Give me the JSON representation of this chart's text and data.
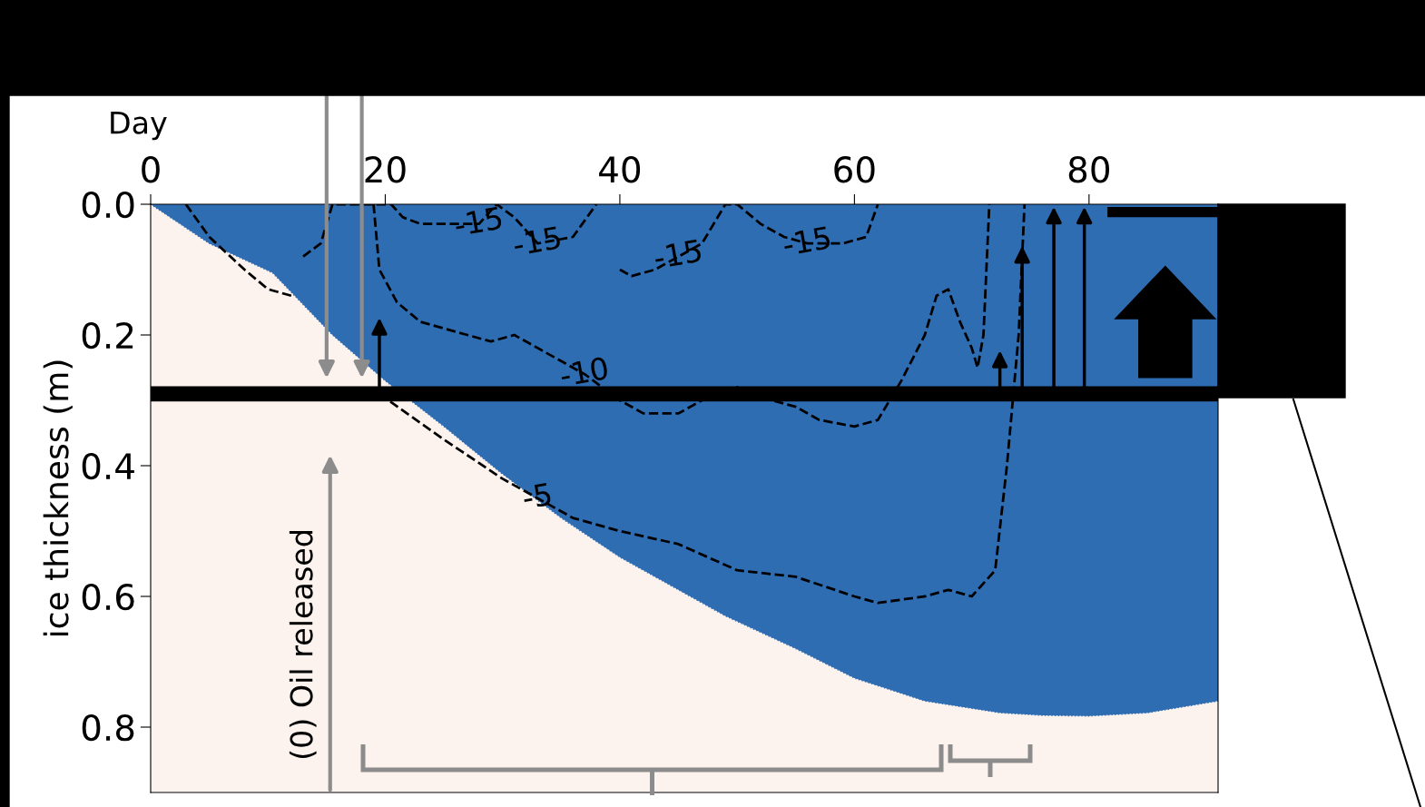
{
  "chart_data": {
    "type": "line",
    "xlabel": "Day",
    "ylabel": "ice thickness (m)",
    "xlim": [
      0,
      91
    ],
    "xticks": [
      0,
      20,
      40,
      60,
      80
    ],
    "ylim": [
      0.9,
      0
    ],
    "yticks": [
      {
        "value": 0,
        "label": "0.0"
      },
      0.2,
      0.4,
      0.6,
      0.8
    ],
    "series": [
      {
        "type": "area",
        "color": "#2f6db3",
        "x": [
          0,
          5,
          10.4,
          15.5,
          20,
          25,
          29.8,
          35,
          40,
          45,
          49,
          55,
          60,
          66,
          72.4,
          76,
          80,
          85,
          91
        ],
        "values": [
          0,
          0.06,
          0.105,
          0.2,
          0.27,
          0.34,
          0.41,
          0.48,
          0.54,
          0.59,
          0.63,
          0.68,
          0.725,
          0.76,
          0.778,
          0.782,
          0.783,
          0.778,
          0.76
        ]
      },
      {
        "color": "#000000",
        "x": [
          19.5,
          25,
          30,
          33,
          36,
          40,
          45,
          50,
          55,
          60,
          62,
          66,
          68,
          70,
          72,
          73,
          74,
          74.5
        ],
        "values": [
          0.29,
          0.36,
          0.42,
          0.45,
          0.48,
          0.5,
          0.52,
          0.56,
          0.57,
          0.6,
          0.61,
          0.6,
          0.59,
          0.6,
          0.56,
          0.4,
          0.2,
          0.0
        ]
      },
      {
        "color": "#000000",
        "x": [
          19,
          19.5,
          21,
          23,
          27,
          29,
          31,
          33,
          35,
          37,
          40,
          42,
          45,
          47,
          50,
          53,
          55,
          57,
          60,
          62,
          64,
          66,
          67,
          68,
          69,
          70,
          70.5,
          71,
          71.5
        ],
        "values": [
          0,
          0.1,
          0.15,
          0.18,
          0.2,
          0.21,
          0.2,
          0.22,
          0.24,
          0.26,
          0.3,
          0.32,
          0.32,
          0.3,
          0.28,
          0.3,
          0.31,
          0.33,
          0.34,
          0.33,
          0.27,
          0.2,
          0.14,
          0.13,
          0.18,
          0.22,
          0.25,
          0.2,
          0.0
        ]
      },
      {
        "color": "#000000",
        "x": [
          3,
          5,
          8,
          10,
          12,
          12.5,
          13,
          14.5,
          15.5,
          20.5,
          21.5,
          23,
          28,
          29.5,
          31,
          33,
          36,
          38,
          38.5,
          40,
          41,
          43,
          45,
          47,
          49,
          50,
          52,
          54,
          56,
          59,
          61,
          62
        ],
        "values": [
          0,
          0.05,
          0.1,
          0.13,
          0.14,
          null,
          0.08,
          0.06,
          0.0,
          0,
          0.02,
          0.03,
          0.03,
          0.0,
          0.02,
          0.06,
          0.05,
          0.0,
          null,
          0.1,
          0.11,
          0.1,
          0.08,
          0.06,
          0.0,
          0,
          0.03,
          0.05,
          0.06,
          0.06,
          0.05,
          0.0
        ]
      }
    ],
    "line_style": "dashed",
    "grid": false,
    "ref_lines": [
      {
        "axis": "y",
        "value": 0.29,
        "color": "#000000"
      }
    ],
    "annotations": [
      {
        "text": "-5",
        "x": 33,
        "y": 0.45
      },
      {
        "text": "-10",
        "x": 37,
        "y": 0.26
      },
      {
        "text": "-15",
        "x": 28,
        "y": 0.03
      },
      {
        "text": "-15",
        "x": 33,
        "y": 0.06
      },
      {
        "text": "-15",
        "x": 45,
        "y": 0.08
      },
      {
        "text": "-15",
        "x": 56,
        "y": 0.06
      },
      "(0) Oil released"
    ]
  }
}
